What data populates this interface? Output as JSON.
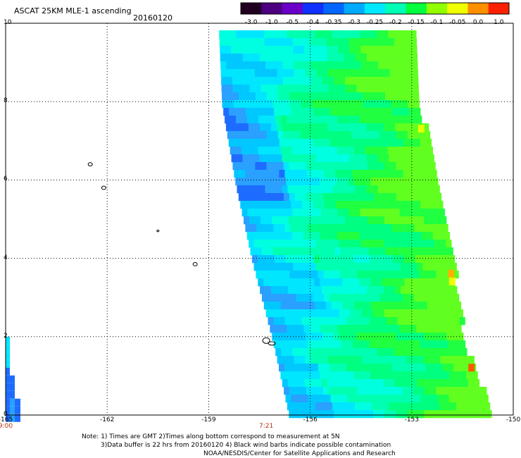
{
  "header": {
    "title": "ASCAT 25KM MLE-1 ascending",
    "date": "20160120"
  },
  "colorbar": {
    "labels": [
      "-3.0",
      "-1.0",
      "-0.5",
      "-0.4",
      "-0.35",
      "-0.3",
      "-0.25",
      "-0.2",
      "-0.15",
      "-0.1",
      "-0.05",
      "0.0",
      "1.0"
    ],
    "colors": [
      "#200020",
      "#4c0080",
      "#6a00c8",
      "#1030ff",
      "#0066ff",
      "#00aaff",
      "#00e8ff",
      "#00ffb4",
      "#00ff3c",
      "#90ff00",
      "#f0ff00",
      "#ff9000",
      "#ff2000"
    ]
  },
  "y_axis": {
    "labels": [
      {
        "text": "10",
        "value": 10
      },
      {
        "text": "8",
        "value": 8
      },
      {
        "text": "6",
        "value": 6
      },
      {
        "text": "4",
        "value": 4
      },
      {
        "text": "2",
        "value": 2
      },
      {
        "text": "0",
        "value": 0
      }
    ]
  },
  "x_axis": {
    "labels": [
      {
        "text": "-165",
        "value": -165
      },
      {
        "text": "-162",
        "value": -162
      },
      {
        "text": "-159",
        "value": -159
      },
      {
        "text": "-156",
        "value": -156
      },
      {
        "text": "-153",
        "value": -153
      },
      {
        "text": "-150",
        "value": -150
      }
    ]
  },
  "times": [
    {
      "text": "9:00",
      "lon": -165
    },
    {
      "text": "7:21",
      "lon": -157.3
    }
  ],
  "notes": {
    "line1": "Note: 1) Times are GMT 2)Times along bottom correspond to measurement at 5N",
    "line2": "3)Data buffer is 22 hrs from 20160120 4) Black wind barbs indicate possible contamination",
    "line3": "NOAA/NESDIS/Center for Satellite Applications and Research"
  },
  "map": {
    "lon_range": [
      -165,
      -150
    ],
    "lat_range": [
      0,
      10
    ],
    "swath": {
      "west_edge": [
        [
          10,
          -158.7
        ],
        [
          8,
          -158.6
        ],
        [
          6,
          -158.2
        ],
        [
          4,
          -157.7
        ],
        [
          2,
          -157.1
        ],
        [
          0,
          -156.6
        ]
      ],
      "east_edge": [
        [
          10,
          -153.0
        ],
        [
          8,
          -152.8
        ],
        [
          6,
          -152.3
        ],
        [
          4,
          -151.8
        ],
        [
          2,
          -151.5
        ],
        [
          0,
          -150.6
        ]
      ]
    },
    "left_strip": {
      "lon_range": [
        -165,
        -164.6
      ],
      "lat_range": [
        0,
        2
      ]
    },
    "islands": [
      {
        "name": "island",
        "lon": -162.5,
        "lat": 6.4
      },
      {
        "name": "island",
        "lon": -162.1,
        "lat": 5.8
      },
      {
        "name": "island",
        "lon": -160.5,
        "lat": 4.7
      },
      {
        "name": "island",
        "lon": -159.4,
        "lat": 3.85
      },
      {
        "name": "island",
        "lon": -157.3,
        "lat": 1.9
      }
    ]
  }
}
